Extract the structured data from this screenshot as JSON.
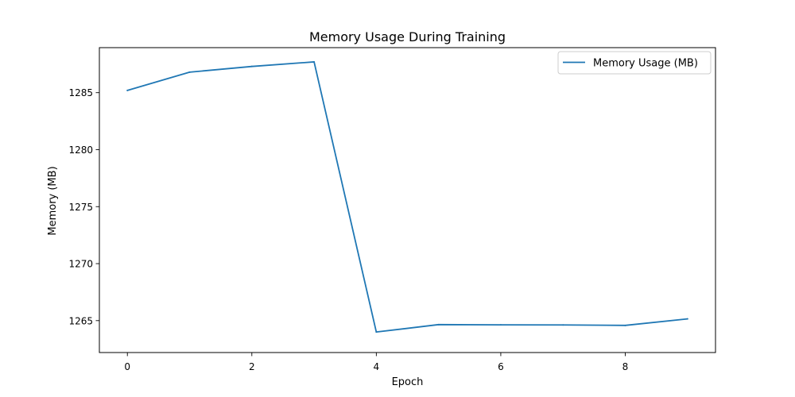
{
  "chart_data": {
    "type": "line",
    "title": "Memory Usage During Training",
    "xlabel": "Epoch",
    "ylabel": "Memory (MB)",
    "x": [
      0,
      1,
      2,
      3,
      4,
      5,
      6,
      7,
      8,
      9
    ],
    "series": [
      {
        "name": "Memory Usage (MB)",
        "color": "#1f77b4",
        "values": [
          1285.2,
          1286.8,
          1287.3,
          1287.7,
          1264.0,
          1264.65,
          1264.63,
          1264.62,
          1264.58,
          1265.15
        ]
      }
    ],
    "xlim": [
      -0.45,
      9.45
    ],
    "ylim": [
      1262.2,
      1288.95
    ],
    "xticks": [
      0,
      2,
      4,
      6,
      8
    ],
    "xtick_labels": [
      "0",
      "2",
      "4",
      "6",
      "8"
    ],
    "yticks": [
      1265,
      1270,
      1275,
      1280,
      1285
    ],
    "ytick_labels": [
      "1265",
      "1270",
      "1275",
      "1280",
      "1285"
    ],
    "grid": false,
    "legend_position": "top-right"
  }
}
